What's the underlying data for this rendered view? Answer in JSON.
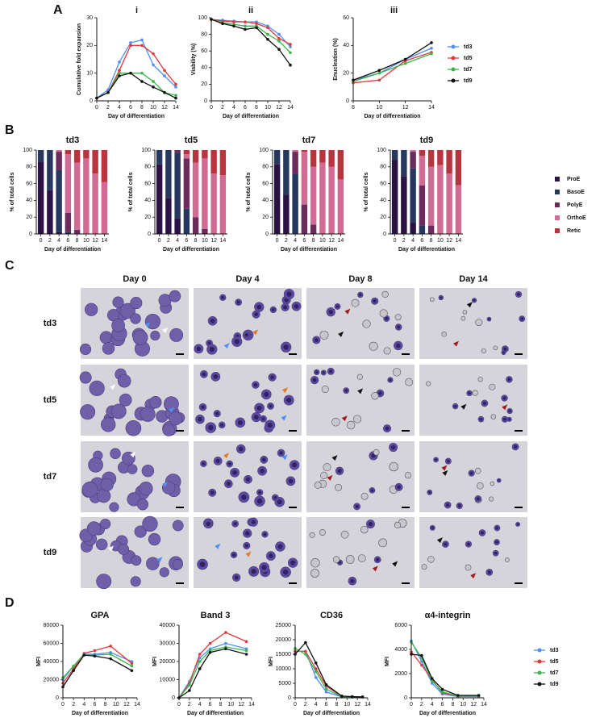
{
  "panel_labels": [
    "A",
    "B",
    "C",
    "D"
  ],
  "subpanel_labels": [
    "i",
    "ii",
    "iii"
  ],
  "microscopy": {
    "columns": [
      "Day 0",
      "Day 4",
      "Day 8",
      "Day 14"
    ],
    "rows": [
      "td3",
      "td5",
      "td7",
      "td9"
    ]
  },
  "chart_data": [
    {
      "type": "line",
      "ylabel": "Cumulative fold expansion",
      "xlabel": "Day of differentiation",
      "x": [
        0,
        2,
        4,
        6,
        8,
        10,
        12,
        14
      ],
      "xlim": [
        0,
        14
      ],
      "xticks": [
        0,
        2,
        4,
        6,
        8,
        10,
        12,
        14
      ],
      "ylim": [
        0,
        30
      ],
      "yticks": [
        0,
        10,
        20,
        30
      ],
      "series": [
        {
          "name": "td3",
          "color": "#4f8ff7",
          "values": [
            1,
            4,
            14,
            21,
            22,
            13,
            9,
            5
          ]
        },
        {
          "name": "td5",
          "color": "#e0393b",
          "values": [
            1,
            3,
            11,
            20,
            20,
            17,
            11,
            6
          ]
        },
        {
          "name": "td7",
          "color": "#3cb44b",
          "values": [
            1,
            3,
            10,
            10,
            10,
            7,
            3,
            2
          ]
        },
        {
          "name": "td9",
          "color": "#111111",
          "values": [
            1,
            3,
            9,
            10,
            7,
            5,
            3,
            1
          ]
        }
      ]
    },
    {
      "type": "line",
      "ylabel": "Viability (%)",
      "xlabel": "Day of differentiation",
      "x": [
        0,
        2,
        4,
        6,
        8,
        10,
        12,
        14
      ],
      "xlim": [
        0,
        14
      ],
      "xticks": [
        0,
        2,
        4,
        6,
        8,
        10,
        12,
        14
      ],
      "ylim": [
        0,
        100
      ],
      "yticks": [
        0,
        20,
        40,
        60,
        80,
        100
      ],
      "series": [
        {
          "name": "td3",
          "color": "#4f8ff7",
          "values": [
            98,
            97,
            96,
            95,
            95,
            90,
            80,
            65
          ]
        },
        {
          "name": "td5",
          "color": "#e0393b",
          "values": [
            98,
            96,
            95,
            95,
            93,
            88,
            75,
            68
          ]
        },
        {
          "name": "td7",
          "color": "#3cb44b",
          "values": [
            98,
            94,
            92,
            90,
            90,
            80,
            72,
            58
          ]
        },
        {
          "name": "td9",
          "color": "#111111",
          "values": [
            98,
            93,
            90,
            86,
            88,
            74,
            62,
            43
          ]
        }
      ]
    },
    {
      "type": "line",
      "ylabel": "Enucleation (%)",
      "xlabel": "Day of differentiation",
      "x": [
        8,
        10,
        12,
        14
      ],
      "xlim": [
        8,
        14
      ],
      "xticks": [
        8,
        10,
        12,
        14
      ],
      "ylim": [
        0,
        60
      ],
      "yticks": [
        0,
        20,
        40,
        60
      ],
      "series": [
        {
          "name": "td3",
          "color": "#4f8ff7",
          "values": [
            15,
            20,
            30,
            38
          ]
        },
        {
          "name": "td5",
          "color": "#e0393b",
          "values": [
            13,
            15,
            29,
            35
          ]
        },
        {
          "name": "td7",
          "color": "#3cb44b",
          "values": [
            14,
            20,
            27,
            34
          ]
        },
        {
          "name": "td9",
          "color": "#111111",
          "values": [
            15,
            22,
            30,
            42
          ]
        }
      ]
    },
    {
      "type": "stacked_bar",
      "title": "td3",
      "ylabel": "% of total cells",
      "xlabel": "Day of differentiation",
      "categories": [
        "0",
        "2",
        "4",
        "6",
        "8",
        "10",
        "12",
        "14"
      ],
      "ylim": [
        0,
        100
      ],
      "yticks": [
        0,
        20,
        40,
        60,
        80,
        100
      ],
      "series": [
        {
          "name": "ProE",
          "color": "#2a1245",
          "values": [
            86,
            52,
            2,
            0,
            0,
            0,
            0,
            0
          ]
        },
        {
          "name": "BasoE",
          "color": "#26385e",
          "values": [
            14,
            48,
            74,
            2,
            0,
            0,
            0,
            0
          ]
        },
        {
          "name": "PolyE",
          "color": "#6b2c5c",
          "values": [
            0,
            0,
            22,
            23,
            5,
            0,
            0,
            0
          ]
        },
        {
          "name": "OrthoE",
          "color": "#d26b94",
          "values": [
            0,
            0,
            2,
            70,
            80,
            90,
            72,
            62
          ]
        },
        {
          "name": "Retic",
          "color": "#b8343e",
          "values": [
            0,
            0,
            0,
            5,
            15,
            10,
            28,
            38
          ]
        }
      ]
    },
    {
      "type": "stacked_bar",
      "title": "td5",
      "ylabel": "% of total cells",
      "xlabel": "Day of differentiation",
      "categories": [
        "0",
        "2",
        "4",
        "6",
        "8",
        "10",
        "12",
        "14"
      ],
      "ylim": [
        0,
        100
      ],
      "yticks": [
        0,
        20,
        40,
        60,
        80,
        100
      ],
      "series": [
        {
          "name": "ProE",
          "color": "#2a1245",
          "values": [
            83,
            43,
            19,
            0,
            0,
            0,
            0,
            0
          ]
        },
        {
          "name": "BasoE",
          "color": "#26385e",
          "values": [
            17,
            57,
            78,
            30,
            0,
            0,
            0,
            0
          ]
        },
        {
          "name": "PolyE",
          "color": "#6b2c5c",
          "values": [
            0,
            0,
            3,
            60,
            20,
            6,
            0,
            0
          ]
        },
        {
          "name": "OrthoE",
          "color": "#d26b94",
          "values": [
            0,
            0,
            0,
            5,
            65,
            84,
            72,
            70
          ]
        },
        {
          "name": "Retic",
          "color": "#b8343e",
          "values": [
            0,
            0,
            0,
            5,
            15,
            10,
            28,
            30
          ]
        }
      ]
    },
    {
      "type": "stacked_bar",
      "title": "td7",
      "ylabel": "% of total cells",
      "xlabel": "Day of differentiation",
      "categories": [
        "0",
        "2",
        "4",
        "6",
        "8",
        "10",
        "12",
        "14"
      ],
      "ylim": [
        0,
        100
      ],
      "yticks": [
        0,
        20,
        40,
        60,
        80,
        100
      ],
      "series": [
        {
          "name": "ProE",
          "color": "#2a1245",
          "values": [
            83,
            47,
            0,
            0,
            0,
            0,
            0,
            0
          ]
        },
        {
          "name": "BasoE",
          "color": "#26385e",
          "values": [
            17,
            53,
            72,
            0,
            0,
            0,
            0,
            0
          ]
        },
        {
          "name": "PolyE",
          "color": "#6b2c5c",
          "values": [
            0,
            0,
            26,
            35,
            11,
            0,
            0,
            0
          ]
        },
        {
          "name": "OrthoE",
          "color": "#d26b94",
          "values": [
            0,
            0,
            2,
            63,
            69,
            85,
            80,
            65
          ]
        },
        {
          "name": "Retic",
          "color": "#b8343e",
          "values": [
            0,
            0,
            0,
            2,
            20,
            15,
            20,
            35
          ]
        }
      ]
    },
    {
      "type": "stacked_bar",
      "title": "td9",
      "ylabel": "% of total cells",
      "xlabel": "Day of differentiation",
      "categories": [
        "0",
        "2",
        "4",
        "6",
        "8",
        "10",
        "12",
        "14"
      ],
      "ylim": [
        0,
        100
      ],
      "yticks": [
        0,
        20,
        40,
        60,
        80,
        100
      ],
      "series": [
        {
          "name": "ProE",
          "color": "#2a1245",
          "values": [
            88,
            69,
            13,
            0,
            0,
            0,
            0,
            0
          ]
        },
        {
          "name": "BasoE",
          "color": "#26385e",
          "values": [
            12,
            31,
            65,
            10,
            0,
            0,
            0,
            0
          ]
        },
        {
          "name": "PolyE",
          "color": "#6b2c5c",
          "values": [
            0,
            0,
            20,
            48,
            10,
            0,
            0,
            0
          ]
        },
        {
          "name": "OrthoE",
          "color": "#d26b94",
          "values": [
            0,
            0,
            2,
            35,
            70,
            82,
            72,
            58
          ]
        },
        {
          "name": "Retic",
          "color": "#b8343e",
          "values": [
            0,
            0,
            0,
            7,
            20,
            18,
            28,
            42
          ]
        }
      ]
    },
    {
      "type": "line",
      "title": "GPA",
      "ylabel": "MFI",
      "xlabel": "Day of differentiation",
      "x": [
        0,
        2,
        4,
        6,
        9,
        13
      ],
      "xlim": [
        0,
        14
      ],
      "xticks": [
        0,
        2,
        4,
        6,
        8,
        10,
        12,
        14
      ],
      "ylim": [
        0,
        80000
      ],
      "yticks": [
        0,
        20000,
        40000,
        60000,
        80000
      ],
      "series": [
        {
          "name": "td3",
          "color": "#4f8ff7",
          "values": [
            20000,
            35000,
            48000,
            48000,
            50000,
            40000
          ]
        },
        {
          "name": "td5",
          "color": "#e0393b",
          "values": [
            16000,
            32000,
            49000,
            52000,
            57000,
            38000
          ]
        },
        {
          "name": "td7",
          "color": "#3cb44b",
          "values": [
            22000,
            35000,
            48000,
            47000,
            48000,
            35000
          ]
        },
        {
          "name": "td9",
          "color": "#111111",
          "values": [
            12000,
            30000,
            47000,
            46000,
            43000,
            30000
          ]
        }
      ]
    },
    {
      "type": "line",
      "title": "Band 3",
      "ylabel": "MFI",
      "xlabel": "Day of differentiation",
      "x": [
        0,
        2,
        4,
        6,
        9,
        13
      ],
      "xlim": [
        0,
        14
      ],
      "xticks": [
        0,
        2,
        4,
        6,
        8,
        10,
        12,
        14
      ],
      "ylim": [
        0,
        40000
      ],
      "yticks": [
        0,
        10000,
        20000,
        30000,
        40000
      ],
      "series": [
        {
          "name": "td3",
          "color": "#4f8ff7",
          "values": [
            0,
            9000,
            22000,
            27000,
            30000,
            27000
          ]
        },
        {
          "name": "td5",
          "color": "#e0393b",
          "values": [
            0,
            8000,
            24000,
            30000,
            36000,
            31000
          ]
        },
        {
          "name": "td7",
          "color": "#3cb44b",
          "values": [
            0,
            7000,
            20000,
            26000,
            28000,
            26000
          ]
        },
        {
          "name": "td9",
          "color": "#111111",
          "values": [
            0,
            4000,
            16000,
            25000,
            27000,
            24000
          ]
        }
      ]
    },
    {
      "type": "line",
      "title": "CD36",
      "ylabel": "MFI",
      "xlabel": "Day of differentiation",
      "x": [
        0,
        2,
        4,
        6,
        9,
        11,
        13
      ],
      "xlim": [
        0,
        14
      ],
      "xticks": [
        0,
        2,
        4,
        6,
        8,
        10,
        12,
        14
      ],
      "ylim": [
        0,
        25000
      ],
      "yticks": [
        0,
        5000,
        10000,
        15000,
        20000,
        25000
      ],
      "series": [
        {
          "name": "td3",
          "color": "#4f8ff7",
          "values": [
            16000,
            16000,
            7000,
            2000,
            300,
            200,
            200
          ]
        },
        {
          "name": "td5",
          "color": "#e0393b",
          "values": [
            16000,
            16000,
            10000,
            4000,
            500,
            300,
            300
          ]
        },
        {
          "name": "td7",
          "color": "#3cb44b",
          "values": [
            17000,
            15000,
            9000,
            3000,
            400,
            300,
            300
          ]
        },
        {
          "name": "td9",
          "color": "#111111",
          "values": [
            15000,
            19000,
            12000,
            4500,
            600,
            400,
            300
          ]
        }
      ]
    },
    {
      "type": "line",
      "title": "α4-integrin",
      "ylabel": "MFI",
      "xlabel": "Day of differentiation",
      "x": [
        0,
        2,
        4,
        6,
        9,
        13
      ],
      "xlim": [
        0,
        14
      ],
      "xticks": [
        0,
        2,
        4,
        6,
        8,
        10,
        12,
        14
      ],
      "ylim": [
        0,
        6000
      ],
      "yticks": [
        0,
        2000,
        4000,
        6000
      ],
      "series": [
        {
          "name": "td3",
          "color": "#4f8ff7",
          "values": [
            4700,
            3000,
            1200,
            300,
            100,
            100
          ]
        },
        {
          "name": "td5",
          "color": "#e0393b",
          "values": [
            3800,
            2700,
            1500,
            400,
            150,
            150
          ]
        },
        {
          "name": "td7",
          "color": "#3cb44b",
          "values": [
            4600,
            3300,
            1400,
            500,
            150,
            150
          ]
        },
        {
          "name": "td9",
          "color": "#111111",
          "values": [
            3600,
            3500,
            1600,
            700,
            200,
            200
          ]
        }
      ]
    }
  ]
}
